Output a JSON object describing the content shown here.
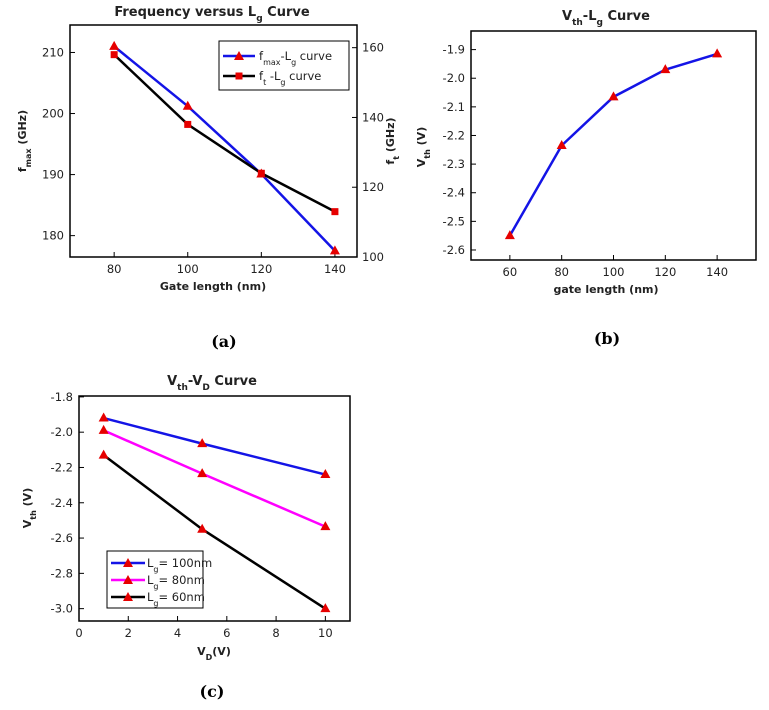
{
  "chart_data": [
    {
      "type": "line",
      "panel_label": "(a)",
      "title": {
        "main": "Frequency versus L",
        "sub": "g",
        "tail": " Curve"
      },
      "xlabel": "Gate length (nm)",
      "ylabel": {
        "main": "f",
        "sub": "max",
        "tail": " (GHz)"
      },
      "y2label": {
        "main": "f",
        "sub": "t",
        "tail": " (GHz)"
      },
      "xlim": [
        68,
        146
      ],
      "ylim": [
        176.5,
        214.5
      ],
      "y2lim": [
        100,
        166.5
      ],
      "xticks": [
        "80",
        "100",
        "120",
        "140"
      ],
      "yticks": [
        "180",
        "190",
        "200",
        "210"
      ],
      "y2ticks": [
        "100",
        "120",
        "140",
        "160"
      ],
      "legend_position": "top-right",
      "series": [
        {
          "name": {
            "main": "f",
            "sub": "max",
            "tail": "-L",
            "sub2": "g",
            "tail2": " curve"
          },
          "axis": "left",
          "color": "#1414e6",
          "marker": "triangle",
          "marker_color": "#e60000",
          "x": [
            80,
            100,
            120,
            140
          ],
          "y": [
            211,
            201.2,
            190.1,
            177.5
          ]
        },
        {
          "name": {
            "main": "f",
            "sub": "t",
            "tail": " -L",
            "sub2": "g",
            "tail2": " curve"
          },
          "axis": "right",
          "color": "#000000",
          "marker": "square",
          "marker_color": "#e60000",
          "x": [
            80,
            100,
            120,
            140
          ],
          "y": [
            158,
            138,
            124,
            113
          ]
        }
      ]
    },
    {
      "type": "line",
      "panel_label": "(b)",
      "title": {
        "main": "V",
        "sub": "th",
        "tail": "-L",
        "sub2": "g",
        "tail2": " Curve"
      },
      "xlabel": "gate length (nm)",
      "ylabel": {
        "main": "V",
        "sub": "th",
        "tail": " (V)"
      },
      "xlim": [
        45,
        155
      ],
      "ylim": [
        -2.635,
        -1.835
      ],
      "xticks": [
        "60",
        "80",
        "100",
        "120",
        "140"
      ],
      "yticks": [
        "-1.9",
        "-2.0",
        "-2.1",
        "-2.2",
        "-2.3",
        "-2.4",
        "-2.5",
        "-2.6"
      ],
      "series": [
        {
          "color": "#1414e6",
          "marker": "triangle",
          "marker_color": "#e60000",
          "x": [
            60,
            80,
            100,
            120,
            140
          ],
          "y": [
            -2.55,
            -2.235,
            -2.065,
            -1.97,
            -1.915
          ]
        }
      ]
    },
    {
      "type": "line",
      "panel_label": "(c)",
      "title": {
        "main": "V",
        "sub": "th",
        "tail": "-V",
        "sub2": "D",
        "tail2": " Curve"
      },
      "xlabel": {
        "main": "V",
        "sub": "D",
        "tail": "(V)"
      },
      "ylabel": {
        "main": "V",
        "sub": "th",
        "tail": " (V)"
      },
      "xlim": [
        0,
        11
      ],
      "ylim": [
        -3.07,
        -1.795
      ],
      "xticks": [
        "0",
        "2",
        "4",
        "6",
        "8",
        "10"
      ],
      "yticks": [
        "-1.8",
        "-2.0",
        "-2.2",
        "-2.4",
        "-2.6",
        "-2.8",
        "-3.0"
      ],
      "legend_position": "bottom-left",
      "series": [
        {
          "name": {
            "main": "L",
            "sub": "g",
            "tail": "= 100nm"
          },
          "color": "#1414e6",
          "marker": "triangle",
          "marker_color": "#e60000",
          "x": [
            1,
            5,
            10
          ],
          "y": [
            -1.92,
            -2.065,
            -2.24
          ]
        },
        {
          "name": {
            "main": "L",
            "sub": "g",
            "tail": "= 80nm"
          },
          "color": "#ff00ff",
          "marker": "triangle",
          "marker_color": "#e60000",
          "x": [
            1,
            5,
            10
          ],
          "y": [
            -1.99,
            -2.235,
            -2.535
          ]
        },
        {
          "name": {
            "main": "L",
            "sub": "g",
            "tail": "= 60nm"
          },
          "color": "#000000",
          "marker": "triangle",
          "marker_color": "#e60000",
          "x": [
            1,
            5,
            10
          ],
          "y": [
            -2.13,
            -2.55,
            -3.0
          ]
        }
      ]
    }
  ]
}
